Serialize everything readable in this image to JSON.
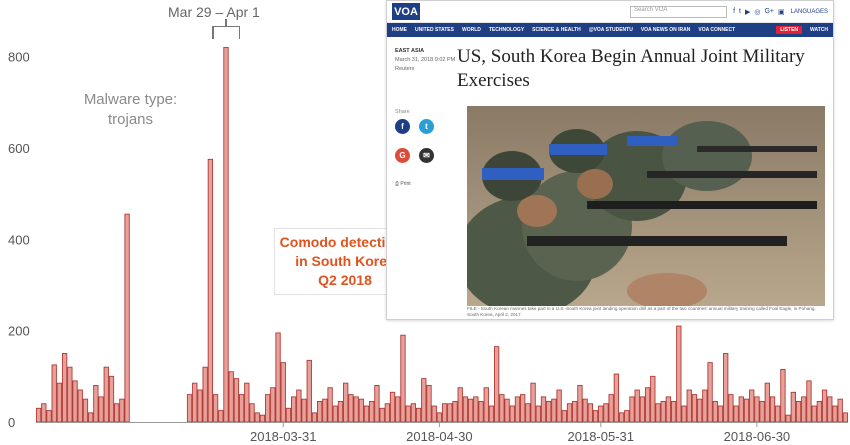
{
  "chart_data": {
    "type": "bar",
    "title": "",
    "xlabel": "",
    "ylabel": "",
    "ylim": [
      0,
      880
    ],
    "y_ticks": [
      0,
      200,
      400,
      600,
      800
    ],
    "x_tick_labels": [
      {
        "label": "2018-03-31",
        "index": 47
      },
      {
        "label": "2018-04-30",
        "index": 77
      },
      {
        "label": "2018-05-31",
        "index": 108
      },
      {
        "label": "2018-06-30",
        "index": 138
      }
    ],
    "values": [
      30,
      40,
      25,
      125,
      85,
      150,
      120,
      90,
      70,
      50,
      20,
      80,
      55,
      120,
      100,
      40,
      50,
      455,
      0,
      0,
      0,
      0,
      0,
      0,
      0,
      0,
      0,
      0,
      0,
      60,
      85,
      70,
      120,
      575,
      60,
      25,
      820,
      110,
      95,
      60,
      85,
      40,
      20,
      15,
      60,
      75,
      195,
      130,
      30,
      55,
      70,
      50,
      135,
      20,
      45,
      50,
      75,
      35,
      45,
      85,
      60,
      55,
      50,
      35,
      45,
      80,
      30,
      40,
      65,
      55,
      190,
      35,
      40,
      30,
      95,
      80,
      35,
      20,
      40,
      40,
      45,
      75,
      55,
      50,
      55,
      45,
      75,
      35,
      165,
      60,
      50,
      35,
      55,
      60,
      40,
      85,
      35,
      55,
      45,
      50,
      70,
      25,
      40,
      45,
      80,
      50,
      40,
      25,
      35,
      40,
      60,
      105,
      20,
      25,
      55,
      70,
      55,
      75,
      100,
      40,
      45,
      55,
      45,
      210,
      35,
      70,
      60,
      50,
      70,
      130,
      45,
      35,
      150,
      60,
      35,
      55,
      50,
      70,
      55,
      45,
      85,
      55,
      35,
      115,
      15,
      65,
      45,
      55,
      90,
      35,
      45,
      70,
      55,
      35,
      50,
      20
    ],
    "bar_color": "#e8a09a",
    "bar_edge": "#b03a34",
    "grid": false
  },
  "annotations": {
    "malware_line1": "Malware type:",
    "malware_line2": "trojans",
    "range": "Mar 29 – Apr 1",
    "comodo_line1": "Comodo detections",
    "comodo_line2": "in South Korea",
    "comodo_line3": "Q2 2018"
  },
  "voa": {
    "logo": "VOA",
    "search_placeholder": "Search VOA",
    "languages": "LANGUAGES",
    "nav": [
      "HOME",
      "UNITED STATES",
      "WORLD",
      "TECHNOLOGY",
      "SCIENCE & HEALTH",
      "@VOA STUDENTU",
      "VOA NEWS ON IRAN",
      "VOA CONNECT"
    ],
    "listen": "LISTEN",
    "watch": "WATCH",
    "section": "EAST ASIA",
    "date": "March 31, 2018 9:02 PM",
    "source": "Reuters",
    "share": "Share",
    "print": "Print",
    "title": "US, South Korea Begin Annual Joint Military Exercises",
    "caption": "FILE - South Korean marines take part in a U.S.-South Korea joint landing operation drill as a part of the two countries' annual military training called Foal Eagle, in Pohang, South Korea, April 2, 2017.",
    "colors": {
      "brand": "#1f3f85",
      "listen": "#e0213a"
    }
  }
}
